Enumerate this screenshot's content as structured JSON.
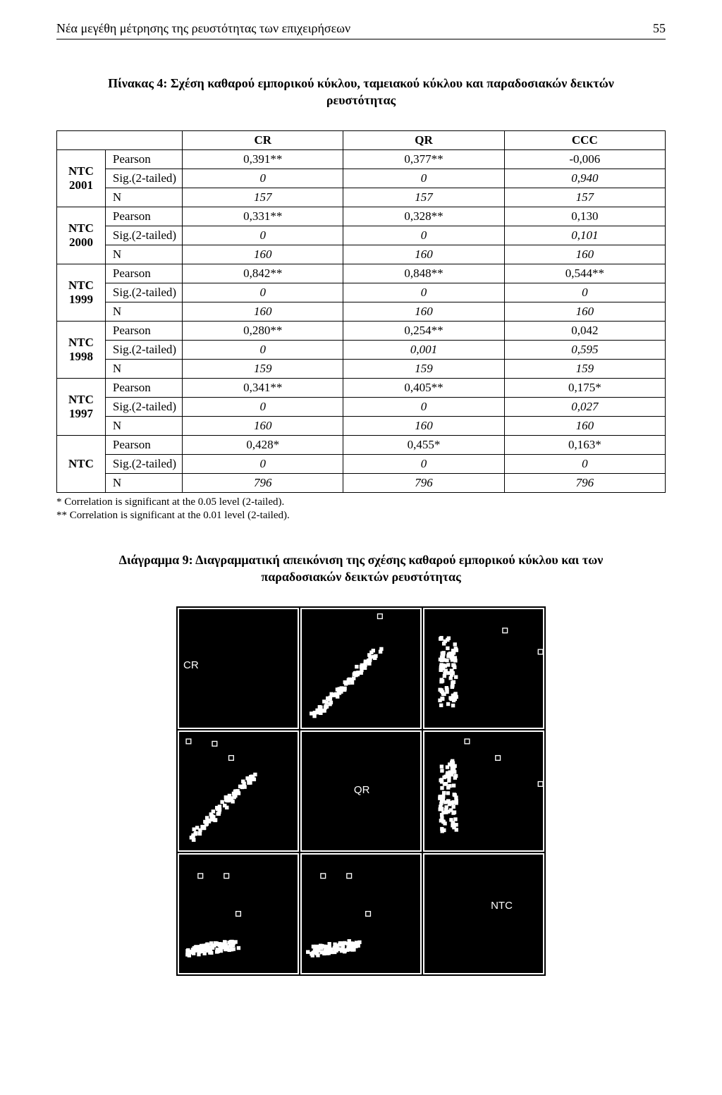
{
  "running_head": {
    "title": "Νέα μεγέθη μέτρησης της ρευστότητας των επιχειρήσεων",
    "page_number": "55"
  },
  "table_caption": "Πίνακας 4: Σχέση καθαρού εμπορικού κύκλου, ταμειακού κύκλου και παραδοσιακών δεικτών ρευστότητας",
  "columns": [
    "CR",
    "QR",
    "CCC"
  ],
  "stat_labels": {
    "pearson": "Pearson",
    "sig": "Sig.(2-tailed)",
    "n": "N"
  },
  "groups": [
    {
      "name": "NTC 2001",
      "pearson": [
        "0,391**",
        "0,377**",
        "-0,006"
      ],
      "sig": [
        "0",
        "0",
        "0,940"
      ],
      "n": [
        "157",
        "157",
        "157"
      ]
    },
    {
      "name": "NTC 2000",
      "pearson": [
        "0,331**",
        "0,328**",
        "0,130"
      ],
      "sig": [
        "0",
        "0",
        "0,101"
      ],
      "n": [
        "160",
        "160",
        "160"
      ]
    },
    {
      "name": "NTC 1999",
      "pearson": [
        "0,842**",
        "0,848**",
        "0,544**"
      ],
      "sig": [
        "0",
        "0",
        "0"
      ],
      "n": [
        "160",
        "160",
        "160"
      ]
    },
    {
      "name": "NTC 1998",
      "pearson": [
        "0,280**",
        "0,254**",
        "0,042"
      ],
      "sig": [
        "0",
        "0,001",
        "0,595"
      ],
      "n": [
        "159",
        "159",
        "159"
      ]
    },
    {
      "name": "NTC 1997",
      "pearson": [
        "0,341**",
        "0,405**",
        "0,175*"
      ],
      "sig": [
        "0",
        "0",
        "0,027"
      ],
      "n": [
        "160",
        "160",
        "160"
      ]
    },
    {
      "name": "NTC",
      "pearson": [
        "0,428*",
        "0,455*",
        "0,163*"
      ],
      "sig": [
        "0",
        "0",
        "0"
      ],
      "n": [
        "796",
        "796",
        "796"
      ]
    }
  ],
  "footnotes": [
    "* Correlation is significant at the 0.05 level (2-tailed).",
    "** Correlation is significant at the 0.01 level (2-tailed)."
  ],
  "figure_caption": "Διάγραμμα 9: Διαγραμματική απεικόνιση της σχέσης καθαρού εμπορικού κύκλου και των παραδοσιακών δεικτών ρευστότητας",
  "scatter_matrix": {
    "labels": [
      "CR",
      "QR",
      "NTC"
    ],
    "background": "#000000",
    "point_fill": "#ffffff",
    "point_stroke": "#ffffff",
    "cells": {
      "cr_qr": {
        "type": "diag_up",
        "outliers": [
          [
            66,
            6
          ]
        ]
      },
      "cr_ntc": {
        "type": "left_cluster",
        "outliers": [
          [
            68,
            18
          ],
          [
            98,
            36
          ]
        ]
      },
      "qr_cr": {
        "type": "diag_up",
        "outliers": [
          [
            30,
            10
          ],
          [
            44,
            22
          ],
          [
            8,
            8
          ]
        ]
      },
      "qr_ntc": {
        "type": "left_cluster",
        "outliers": [
          [
            62,
            22
          ],
          [
            98,
            44
          ],
          [
            36,
            8
          ]
        ]
      },
      "ntc_cr": {
        "type": "bottom_wedge",
        "outliers": [
          [
            18,
            18
          ],
          [
            40,
            18
          ],
          [
            50,
            50
          ]
        ]
      },
      "ntc_qr": {
        "type": "bottom_wedge",
        "outliers": [
          [
            18,
            18
          ],
          [
            40,
            18
          ],
          [
            56,
            50
          ]
        ]
      }
    }
  }
}
